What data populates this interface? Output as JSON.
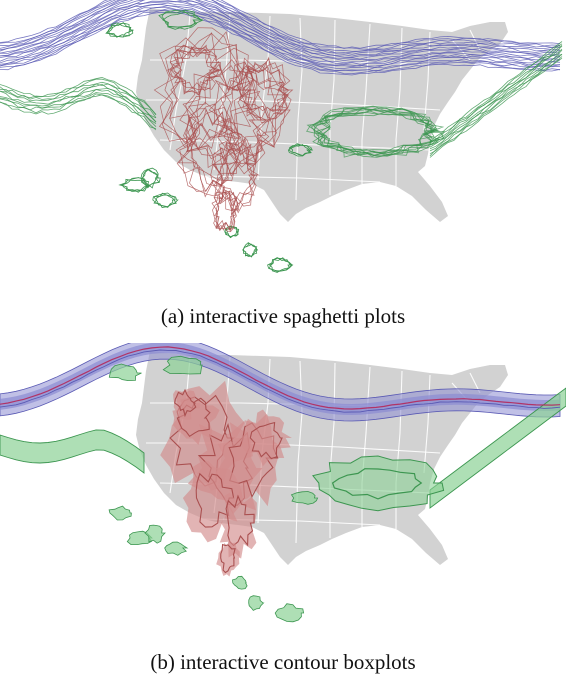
{
  "figure": {
    "captions": {
      "a": "(a) interactive spaghetti plots",
      "b": "(b) interactive contour boxplots"
    },
    "colors": {
      "background": "#ffffff",
      "land": "#d2d2d2",
      "state_borders": "#ffffff",
      "blue_contours": "#5a5ab4",
      "blue_band": "#8c8cd2",
      "green_contours": "#3c9650",
      "green_band": "#8cd296",
      "red_contours": "#aa5050",
      "red_band": "#d28c8c",
      "median_line": "#b4285a"
    }
  }
}
